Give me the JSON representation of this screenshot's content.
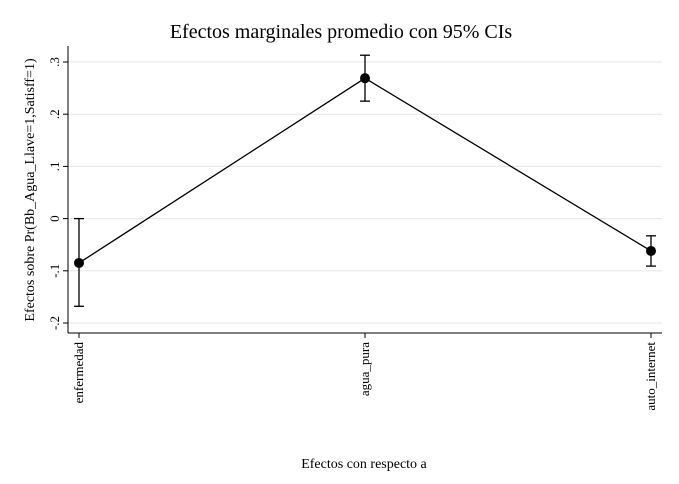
{
  "chart_data": {
    "type": "line",
    "title": "Efectos marginales promedio con 95% CIs",
    "xlabel": "Efectos con respecto a",
    "ylabel": "Efectos sobre Pr(Bb_Agua_Llave=1,Satisff=1)",
    "categories": [
      "enfermedad",
      "agua_pura",
      "auto_internet"
    ],
    "series": [
      {
        "values": [
          -0.085,
          0.269,
          -0.062
        ],
        "ci_low": [
          -0.168,
          0.225,
          -0.091
        ],
        "ci_high": [
          0.0,
          0.313,
          -0.033
        ]
      }
    ],
    "ylim": [
      -0.2,
      0.3
    ],
    "yticks": [
      -0.2,
      -0.1,
      0,
      0.1,
      0.2,
      0.3
    ],
    "ytick_labels": [
      "-.2",
      "-.1",
      "0",
      ".1",
      ".2",
      ".3"
    ],
    "grid": true,
    "legend": "none"
  }
}
